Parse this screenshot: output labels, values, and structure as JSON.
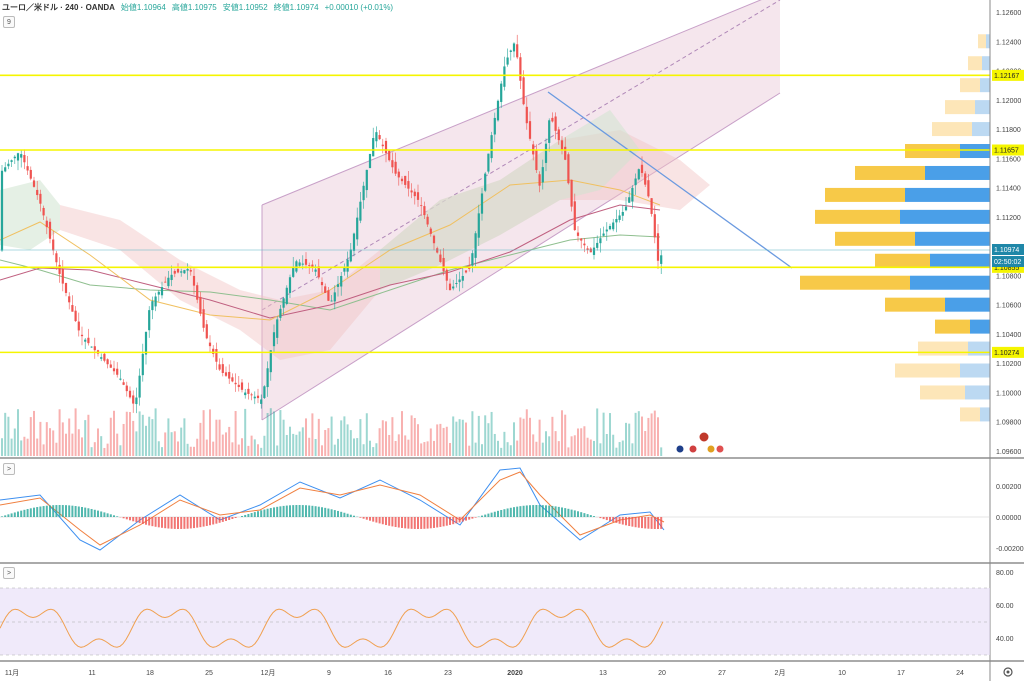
{
  "legend": {
    "symbol": "ユーロ／米ドル · 240 · OANDA",
    "open": "始値1.10964",
    "high": "高値1.10975",
    "low": "安値1.10952",
    "close": "終値1.10974",
    "change": "+0.00010 (+0.01%)",
    "collapse_label": "9"
  },
  "main_axis": {
    "ticks": [
      "1.12600",
      "1.12400",
      "1.12200",
      "1.12000",
      "1.11800",
      "1.11600",
      "1.11400",
      "1.11200",
      "1.11000",
      "1.10800",
      "1.10600",
      "1.10400",
      "1.10200",
      "1.10000",
      "1.09800",
      "1.09600"
    ],
    "levels": [
      {
        "value": 1.12167,
        "label": "1.12167"
      },
      {
        "value": 1.11657,
        "label": "1.11657"
      },
      {
        "value": 1.10855,
        "label": "1.10855"
      },
      {
        "value": 1.10274,
        "label": "1.10274"
      }
    ],
    "current_price": "1.10974",
    "countdown": "02:50:02"
  },
  "macd_axis": {
    "ticks": [
      "0.00200",
      "0.00000",
      "-0.00200"
    ],
    "toggle_label": ">"
  },
  "rsi_axis": {
    "ticks": [
      "80.00",
      "60.00",
      "40.00"
    ],
    "toggle_label": ">"
  },
  "time_axis": {
    "labels": [
      "11月",
      "11",
      "18",
      "25",
      "12月",
      "9",
      "16",
      "23",
      "2020",
      "13",
      "20",
      "27",
      "2月",
      "10",
      "17",
      "24"
    ]
  },
  "colors": {
    "up": "#26a69a",
    "down": "#ef5350",
    "level": "#f5f500",
    "channel": "#c8a0c8",
    "rsi": "#f0a050"
  },
  "icons": {
    "settings": "gear-icon"
  }
}
